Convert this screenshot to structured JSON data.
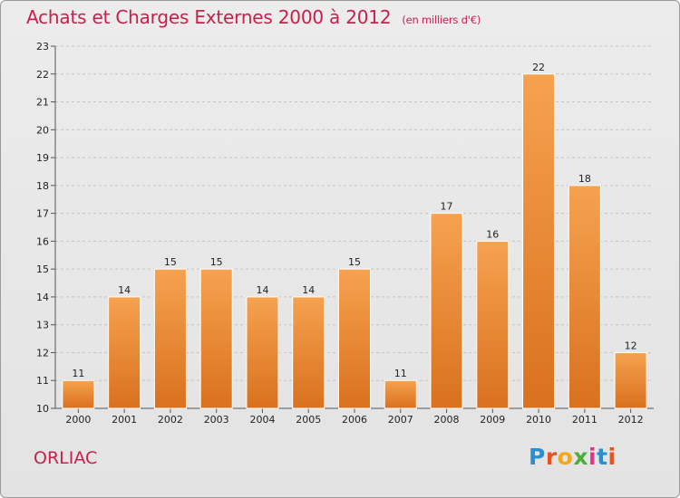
{
  "header": {
    "title": "Achats et Charges Externes 2000 à 2012",
    "subtitle": "(en milliers d'€)"
  },
  "footer": {
    "commune": "ORLIAC",
    "logo_letters": [
      "P",
      "r",
      "o",
      "x",
      "i",
      "t",
      "i"
    ],
    "logo_colors": [
      "#2a8fd0",
      "#e8541f",
      "#f2a81d",
      "#4caf3a",
      "#d93a85",
      "#2a8fd0",
      "#e8541f"
    ]
  },
  "chart_data": {
    "type": "bar",
    "title": "Achats et Charges Externes 2000 à 2012",
    "subtitle": "(en milliers d'€)",
    "xlabel": "",
    "ylabel": "",
    "categories": [
      "2000",
      "2001",
      "2002",
      "2003",
      "2004",
      "2005",
      "2006",
      "2007",
      "2008",
      "2009",
      "2010",
      "2011",
      "2012"
    ],
    "values": [
      11,
      14,
      15,
      15,
      14,
      14,
      15,
      11,
      17,
      16,
      22,
      18,
      12
    ],
    "data_labels": [
      "11",
      "14",
      "15",
      "15",
      "14",
      "14",
      "15",
      "11",
      "17",
      "16",
      "22",
      "18",
      "12"
    ],
    "ylim": [
      10,
      23
    ],
    "yticks": [
      "10",
      "11",
      "12",
      "13",
      "14",
      "15",
      "16",
      "17",
      "18",
      "19",
      "20",
      "21",
      "22",
      "23"
    ],
    "grid": true,
    "bar_color_top": "#f6a24f",
    "bar_color_bottom": "#d9711e"
  }
}
